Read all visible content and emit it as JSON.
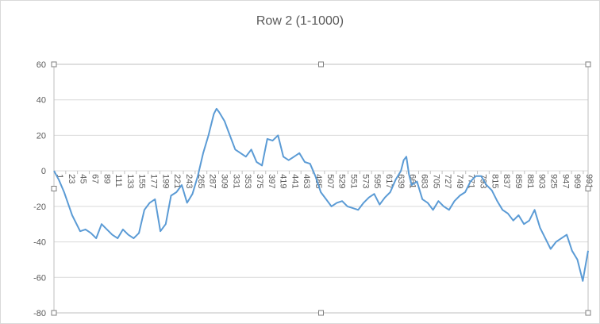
{
  "chart_data": {
    "type": "line",
    "title": "Row 2 (1-1000)",
    "xlabel": "",
    "ylabel": "",
    "ylim": [
      -80,
      60
    ],
    "y_ticks": [
      60,
      40,
      20,
      0,
      -20,
      -40,
      -60,
      -80
    ],
    "x_range": [
      1,
      1000
    ],
    "x_tick_labels": [
      "1",
      "23",
      "45",
      "67",
      "89",
      "111",
      "133",
      "155",
      "177",
      "199",
      "221",
      "243",
      "265",
      "287",
      "309",
      "331",
      "353",
      "375",
      "397",
      "419",
      "441",
      "463",
      "485",
      "507",
      "529",
      "551",
      "573",
      "595",
      "617",
      "639",
      "661",
      "683",
      "705",
      "727",
      "749",
      "771",
      "793",
      "815",
      "837",
      "859",
      "881",
      "903",
      "925",
      "947",
      "969",
      "991"
    ],
    "grid": true,
    "legend": "none",
    "colors": {
      "series": "#5b9bd5",
      "grid": "#d9d9d9",
      "text": "#595959",
      "frame": "#bfbfbf"
    },
    "series": [
      {
        "x": [
          1,
          10,
          20,
          35,
          50,
          60,
          70,
          80,
          90,
          100,
          110,
          120,
          130,
          140,
          150,
          160,
          170,
          180,
          190,
          200,
          210,
          220,
          230,
          240,
          250,
          260,
          270,
          280,
          290,
          300,
          305,
          310,
          320,
          330,
          340,
          350,
          360,
          370,
          380,
          390,
          400,
          410,
          420,
          430,
          440,
          450,
          460,
          470,
          480,
          490,
          500,
          510,
          520,
          530,
          540,
          550,
          560,
          570,
          580,
          590,
          600,
          610,
          620,
          630,
          640,
          650,
          655,
          660,
          665,
          670,
          680,
          690,
          700,
          710,
          720,
          730,
          740,
          750,
          760,
          770,
          780,
          790,
          800,
          810,
          820,
          830,
          840,
          850,
          860,
          870,
          880,
          890,
          900,
          910,
          920,
          930,
          940,
          950,
          960,
          970,
          980,
          990,
          1000
        ],
        "values": [
          0,
          -5,
          -12,
          -25,
          -34,
          -33,
          -35,
          -38,
          -30,
          -33,
          -36,
          -38,
          -33,
          -36,
          -38,
          -35,
          -22,
          -18,
          -16,
          -34,
          -30,
          -14,
          -12,
          -8,
          -18,
          -13,
          -3,
          10,
          20,
          32,
          35,
          33,
          28,
          20,
          12,
          10,
          8,
          12,
          5,
          3,
          18,
          17,
          20,
          8,
          6,
          8,
          10,
          5,
          4,
          -3,
          -12,
          -16,
          -20,
          -18,
          -17,
          -20,
          -21,
          -22,
          -18,
          -15,
          -13,
          -19,
          -15,
          -12,
          -5,
          0,
          6,
          8,
          -2,
          -8,
          -6,
          -16,
          -18,
          -22,
          -17,
          -20,
          -22,
          -17,
          -14,
          -12,
          -6,
          -3,
          -3,
          -8,
          -11,
          -17,
          -22,
          -24,
          -28,
          -25,
          -30,
          -28,
          -22,
          -32,
          -38,
          -44,
          -40,
          -38,
          -36,
          -45,
          -50,
          -62,
          -45
        ]
      }
    ]
  }
}
